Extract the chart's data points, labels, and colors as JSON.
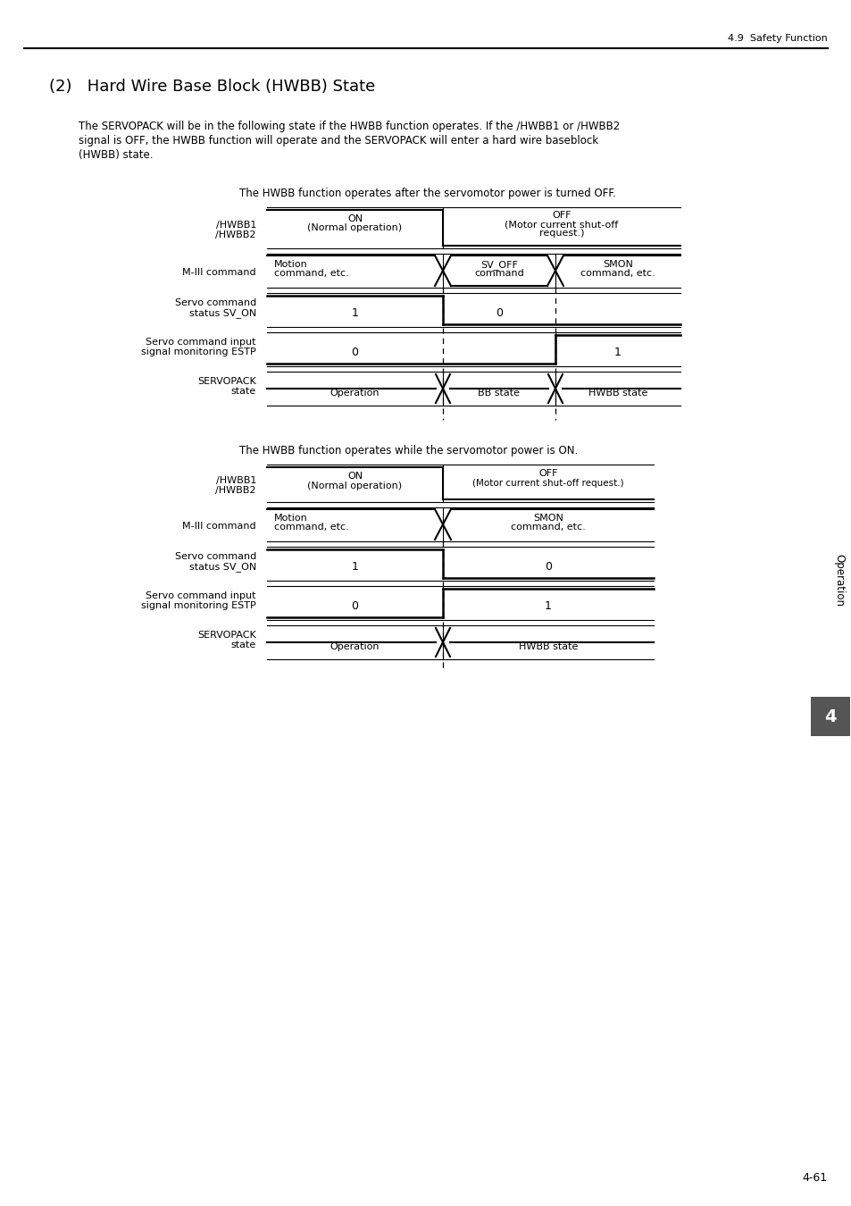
{
  "title_section": "4.9  Safety Function",
  "section_heading": "(2)   Hard Wire Base Block (HWBB) State",
  "body_text_line1": "The SERVOPACK will be in the following state if the HWBB function operates. If the /HWBB1 or /HWBB2",
  "body_text_line2": "signal is OFF, the HWBB function will operate and the SERVOPACK will enter a hard wire baseblock",
  "body_text_line3": "(HWBB) state.",
  "diagram1_caption": "The HWBB function operates after the servomotor power is turned OFF.",
  "diagram2_caption": "The HWBB function operates while the servomotor power is ON.",
  "page_number": "4-61",
  "sidebar_text": "Operation",
  "sidebar_number": "4",
  "bg_color": "#ffffff",
  "line_color": "#000000"
}
